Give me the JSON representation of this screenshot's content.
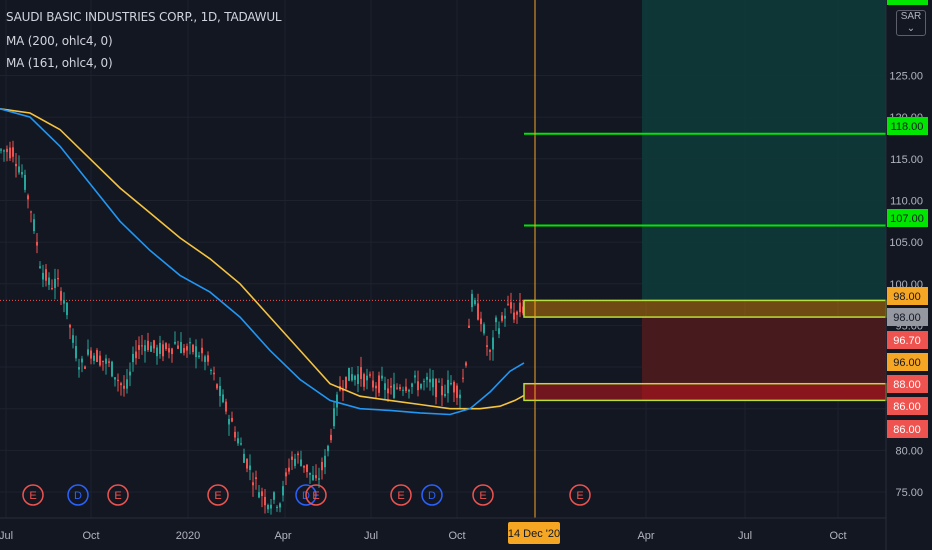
{
  "legend": {
    "symbol": "SAUDI BASIC INDUSTRIES CORP., 1D, TADAWUL",
    "ma1": "MA (200, ohlc4, 0)",
    "ma2": "MA (161, ohlc4, 0)"
  },
  "currency": {
    "code": "SAR",
    "icon": "chevron-down-icon"
  },
  "colors": {
    "background": "#131722",
    "up": "#26a69a",
    "down": "#ef5350",
    "ma200": "#2196f3",
    "ma161": "#f5c342",
    "target_line": "#00e600",
    "crosshair": "#f5a623",
    "profit_zone": "#0e3a3a",
    "loss_zone": "#4a1a1f"
  },
  "chart_data": {
    "type": "candlestick",
    "symbol": "SAUDI BASIC INDUSTRIES CORP.",
    "interval": "1D",
    "exchange": "TADAWUL",
    "y_ticks": [
      "75.00",
      "80.00",
      "85.00",
      "90.00",
      "95.00",
      "100.00",
      "105.00",
      "110.00",
      "115.00",
      "120.00",
      "125.00"
    ],
    "y_range": [
      72.5,
      129
    ],
    "x_ticks": [
      "Jul",
      "Oct",
      "2020",
      "Apr",
      "Jul",
      "Oct",
      "Apr",
      "Jul",
      "Oct"
    ],
    "crosshair_date": "14 Dec '20",
    "price_tags": [
      {
        "value": "118.00",
        "style": "green"
      },
      {
        "value": "107.00",
        "style": "green"
      },
      {
        "value": "98.00",
        "style": "orange"
      },
      {
        "value": "98.00",
        "style": "gray"
      },
      {
        "value": "96.70",
        "style": "red"
      },
      {
        "value": "96.00",
        "style": "orange"
      },
      {
        "value": "88.00",
        "style": "red"
      },
      {
        "value": "86.00",
        "style": "red"
      },
      {
        "value": "86.00",
        "style": "red"
      }
    ],
    "target_levels": [
      118,
      107
    ],
    "entry_zone": [
      96,
      98
    ],
    "stop_zone": [
      86,
      88
    ],
    "last_price": 98,
    "event_markers": [
      "E",
      "D",
      "E",
      "E",
      "D",
      "E",
      "E",
      "D",
      "E",
      "E"
    ],
    "price_path": [
      [
        0,
        116
      ],
      [
        12,
        116
      ],
      [
        22,
        113
      ],
      [
        30,
        109
      ],
      [
        40,
        102
      ],
      [
        48,
        100
      ],
      [
        56,
        100
      ],
      [
        64,
        98
      ],
      [
        72,
        93
      ],
      [
        80,
        90
      ],
      [
        90,
        92
      ],
      [
        100,
        91
      ],
      [
        110,
        90
      ],
      [
        125,
        87
      ],
      [
        135,
        92
      ],
      [
        145,
        93
      ],
      [
        155,
        92
      ],
      [
        165,
        92
      ],
      [
        175,
        93
      ],
      [
        185,
        92
      ],
      [
        195,
        92
      ],
      [
        205,
        91
      ],
      [
        215,
        88
      ],
      [
        225,
        85
      ],
      [
        235,
        82
      ],
      [
        245,
        79
      ],
      [
        255,
        76
      ],
      [
        265,
        74
      ],
      [
        280,
        74
      ],
      [
        290,
        79
      ],
      [
        300,
        79
      ],
      [
        315,
        76
      ],
      [
        325,
        79
      ],
      [
        333,
        84
      ],
      [
        340,
        88
      ],
      [
        350,
        89
      ],
      [
        360,
        89
      ],
      [
        370,
        88
      ],
      [
        380,
        88
      ],
      [
        390,
        87
      ],
      [
        400,
        88
      ],
      [
        410,
        88
      ],
      [
        420,
        88
      ],
      [
        430,
        88
      ],
      [
        440,
        87
      ],
      [
        450,
        88
      ],
      [
        460,
        87
      ],
      [
        465,
        91
      ],
      [
        470,
        98
      ],
      [
        475,
        97
      ],
      [
        480,
        96
      ],
      [
        485,
        93
      ],
      [
        490,
        91
      ],
      [
        495,
        95
      ],
      [
        500,
        95
      ],
      [
        505,
        97
      ],
      [
        510,
        97
      ],
      [
        515,
        96
      ],
      [
        520,
        97
      ],
      [
        524,
        97
      ]
    ],
    "ma200_path": [
      [
        0,
        121
      ],
      [
        30,
        120
      ],
      [
        60,
        116.5
      ],
      [
        90,
        112
      ],
      [
        120,
        107.5
      ],
      [
        150,
        104
      ],
      [
        180,
        101
      ],
      [
        210,
        99
      ],
      [
        240,
        96
      ],
      [
        270,
        92
      ],
      [
        300,
        88.5
      ],
      [
        330,
        86
      ],
      [
        360,
        85
      ],
      [
        390,
        84.8
      ],
      [
        420,
        84.5
      ],
      [
        450,
        84.3
      ],
      [
        470,
        85
      ],
      [
        490,
        87
      ],
      [
        510,
        89.5
      ],
      [
        524,
        90.5
      ]
    ],
    "ma161_path": [
      [
        0,
        121
      ],
      [
        30,
        120.5
      ],
      [
        60,
        118.5
      ],
      [
        90,
        115
      ],
      [
        120,
        111.5
      ],
      [
        150,
        108.5
      ],
      [
        180,
        105.5
      ],
      [
        210,
        103
      ],
      [
        240,
        100
      ],
      [
        270,
        96
      ],
      [
        300,
        92
      ],
      [
        330,
        88
      ],
      [
        360,
        86.5
      ],
      [
        390,
        86
      ],
      [
        420,
        85.5
      ],
      [
        450,
        85
      ],
      [
        480,
        85
      ],
      [
        500,
        85.3
      ],
      [
        515,
        86
      ],
      [
        524,
        86.6
      ]
    ]
  }
}
